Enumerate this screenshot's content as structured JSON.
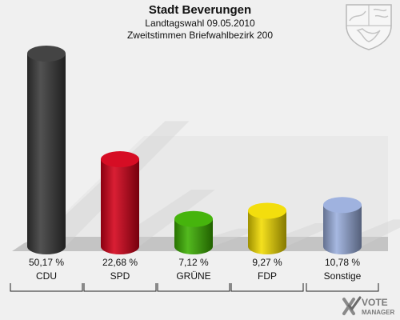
{
  "header": {
    "title": "Stadt Beverungen",
    "subtitle": "Landtagswahl 09.05.2010",
    "subtitle2": "Zweitstimmen Briefwahlbezirk 200"
  },
  "chart_data": {
    "type": "bar",
    "categories": [
      "CDU",
      "SPD",
      "GRÜNE",
      "FDP",
      "Sonstige"
    ],
    "values": [
      50.17,
      22.68,
      7.12,
      9.27,
      10.78
    ],
    "value_labels": [
      "50,17 %",
      "22,68 %",
      "7,12 %",
      "9,27 %",
      "10,78 %"
    ],
    "colors": [
      "#3a3a3a",
      "#d40018",
      "#3cb000",
      "#f2dc00",
      "#9aaedd"
    ],
    "title": "Stadt Beverungen",
    "subtitle": "Landtagswahl 09.05.2010 / Zweitstimmen Briefwahlbezirk 200",
    "ylim": [
      0,
      50.17
    ],
    "grid": false,
    "legend": "none"
  },
  "branding": {
    "logo_text_top": "VOTE",
    "logo_text_bottom": "MANAGER",
    "crest_icon": "nrw-coat-of-arms-icon",
    "logo_icon": "vote-manager-logo-icon"
  }
}
